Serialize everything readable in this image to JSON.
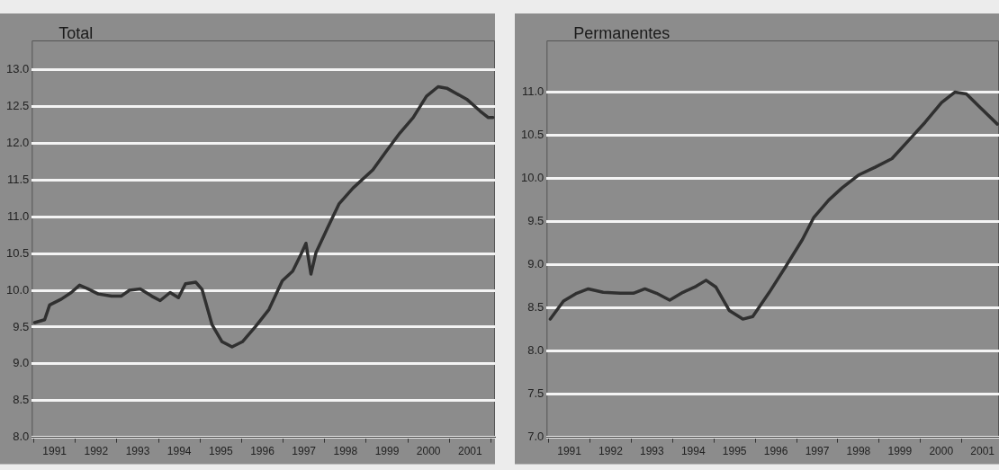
{
  "chart_data": [
    {
      "type": "line",
      "title": "Total",
      "color": "#303030",
      "grid": "y",
      "xlim": [
        1990.95,
        2002.1
      ],
      "ylim": [
        8,
        13.4
      ],
      "xticks": [
        {
          "value": 1991,
          "label": null
        },
        {
          "value": 1991.5,
          "label": "1991"
        },
        {
          "value": 1992,
          "label": null
        },
        {
          "value": 1992.5,
          "label": "1992"
        },
        {
          "value": 1993,
          "label": null
        },
        {
          "value": 1993.5,
          "label": "1993"
        },
        {
          "value": 1994,
          "label": null
        },
        {
          "value": 1994.5,
          "label": "1994"
        },
        {
          "value": 1995,
          "label": null
        },
        {
          "value": 1995.5,
          "label": "1995"
        },
        {
          "value": 1996,
          "label": null
        },
        {
          "value": 1996.5,
          "label": "1996"
        },
        {
          "value": 1997,
          "label": null
        },
        {
          "value": 1997.5,
          "label": "1997"
        },
        {
          "value": 1998,
          "label": null
        },
        {
          "value": 1998.5,
          "label": "1998"
        },
        {
          "value": 1999,
          "label": null
        },
        {
          "value": 1999.5,
          "label": "1999"
        },
        {
          "value": 2000,
          "label": null
        },
        {
          "value": 2000.5,
          "label": "2000"
        },
        {
          "value": 2001,
          "label": null
        },
        {
          "value": 2001.5,
          "label": "2001"
        },
        {
          "value": 2002,
          "label": null
        }
      ],
      "yticks": [
        {
          "value": 8,
          "label": "8.0"
        },
        {
          "value": 8.5,
          "label": "8.5"
        },
        {
          "value": 9,
          "label": "9.0"
        },
        {
          "value": 9.5,
          "label": "9.5"
        },
        {
          "value": 10,
          "label": "10.0"
        },
        {
          "value": 10.5,
          "label": "10.5"
        },
        {
          "value": 11,
          "label": "11.0"
        },
        {
          "value": 11.5,
          "label": "11.5"
        },
        {
          "value": 12,
          "label": "12.0"
        },
        {
          "value": 12.5,
          "label": "12.5"
        },
        {
          "value": 13,
          "label": "13.0"
        }
      ],
      "x": [
        1991.02,
        1991.26,
        1991.38,
        1991.66,
        1991.9,
        1992.1,
        1992.3,
        1992.55,
        1992.87,
        1993.1,
        1993.3,
        1993.56,
        1993.84,
        1994.04,
        1994.28,
        1994.48,
        1994.65,
        1994.9,
        1995.05,
        1995.29,
        1995.53,
        1995.77,
        1996.02,
        1996.34,
        1996.66,
        1996.98,
        1997.23,
        1997.43,
        1997.55,
        1997.67,
        1997.79,
        1998.07,
        1998.35,
        1998.68,
        1999.16,
        1999.48,
        1999.81,
        2000.13,
        2000.45,
        2000.73,
        2000.94,
        2001.42,
        2001.74,
        2001.94,
        2002.05
      ],
      "values": [
        9.56,
        9.6,
        9.8,
        9.88,
        9.97,
        10.07,
        10.02,
        9.95,
        9.92,
        9.92,
        10.0,
        10.02,
        9.92,
        9.86,
        9.97,
        9.9,
        10.09,
        10.11,
        10.01,
        9.53,
        9.3,
        9.23,
        9.3,
        9.51,
        9.74,
        10.13,
        10.26,
        10.49,
        10.64,
        10.22,
        10.51,
        10.85,
        11.18,
        11.39,
        11.64,
        11.89,
        12.14,
        12.35,
        12.64,
        12.77,
        12.75,
        12.6,
        12.44,
        12.35,
        12.35
      ]
    },
    {
      "type": "line",
      "title": "Permanentes",
      "color": "#303030",
      "grid": "y",
      "xlim": [
        1990.95,
        2001.9
      ],
      "ylim": [
        7,
        11.6
      ],
      "xticks": [
        {
          "value": 1991,
          "label": null
        },
        {
          "value": 1991.5,
          "label": "1991"
        },
        {
          "value": 1992,
          "label": null
        },
        {
          "value": 1992.5,
          "label": "1992"
        },
        {
          "value": 1993,
          "label": null
        },
        {
          "value": 1993.5,
          "label": "1993"
        },
        {
          "value": 1994,
          "label": null
        },
        {
          "value": 1994.5,
          "label": "1994"
        },
        {
          "value": 1995,
          "label": null
        },
        {
          "value": 1995.5,
          "label": "1995"
        },
        {
          "value": 1996,
          "label": null
        },
        {
          "value": 1996.5,
          "label": "1996"
        },
        {
          "value": 1997,
          "label": null
        },
        {
          "value": 1997.5,
          "label": "1997"
        },
        {
          "value": 1998,
          "label": null
        },
        {
          "value": 1998.5,
          "label": "1998"
        },
        {
          "value": 1999,
          "label": null
        },
        {
          "value": 1999.5,
          "label": "1999"
        },
        {
          "value": 2000,
          "label": null
        },
        {
          "value": 2000.5,
          "label": "2000"
        },
        {
          "value": 2001,
          "label": null
        },
        {
          "value": 2001.5,
          "label": "2001"
        }
      ],
      "yticks": [
        {
          "value": 7,
          "label": "7.0"
        },
        {
          "value": 7.5,
          "label": "7.5"
        },
        {
          "value": 8,
          "label": "8.0"
        },
        {
          "value": 8.5,
          "label": "8.5"
        },
        {
          "value": 9,
          "label": "9.0"
        },
        {
          "value": 9.5,
          "label": "9.5"
        },
        {
          "value": 10,
          "label": "10.0"
        },
        {
          "value": 10.5,
          "label": "10.5"
        },
        {
          "value": 11,
          "label": "11.0"
        }
      ],
      "x": [
        1991.04,
        1991.36,
        1991.68,
        1991.96,
        1992.32,
        1992.73,
        1993.05,
        1993.33,
        1993.61,
        1993.93,
        1994.25,
        1994.57,
        1994.81,
        1995.05,
        1995.37,
        1995.7,
        1995.94,
        1996.34,
        1996.74,
        1997.14,
        1997.42,
        1997.78,
        1998.1,
        1998.5,
        1998.9,
        1999.31,
        1999.71,
        2000.11,
        2000.51,
        2000.83,
        2001.11,
        2001.47,
        2001.86
      ],
      "values": [
        8.37,
        8.58,
        8.67,
        8.72,
        8.68,
        8.67,
        8.67,
        8.72,
        8.67,
        8.59,
        8.68,
        8.75,
        8.82,
        8.74,
        8.47,
        8.37,
        8.4,
        8.68,
        8.98,
        9.29,
        9.55,
        9.75,
        9.89,
        10.04,
        10.13,
        10.23,
        10.44,
        10.65,
        10.88,
        11.0,
        10.98,
        10.81,
        10.63
      ]
    }
  ]
}
